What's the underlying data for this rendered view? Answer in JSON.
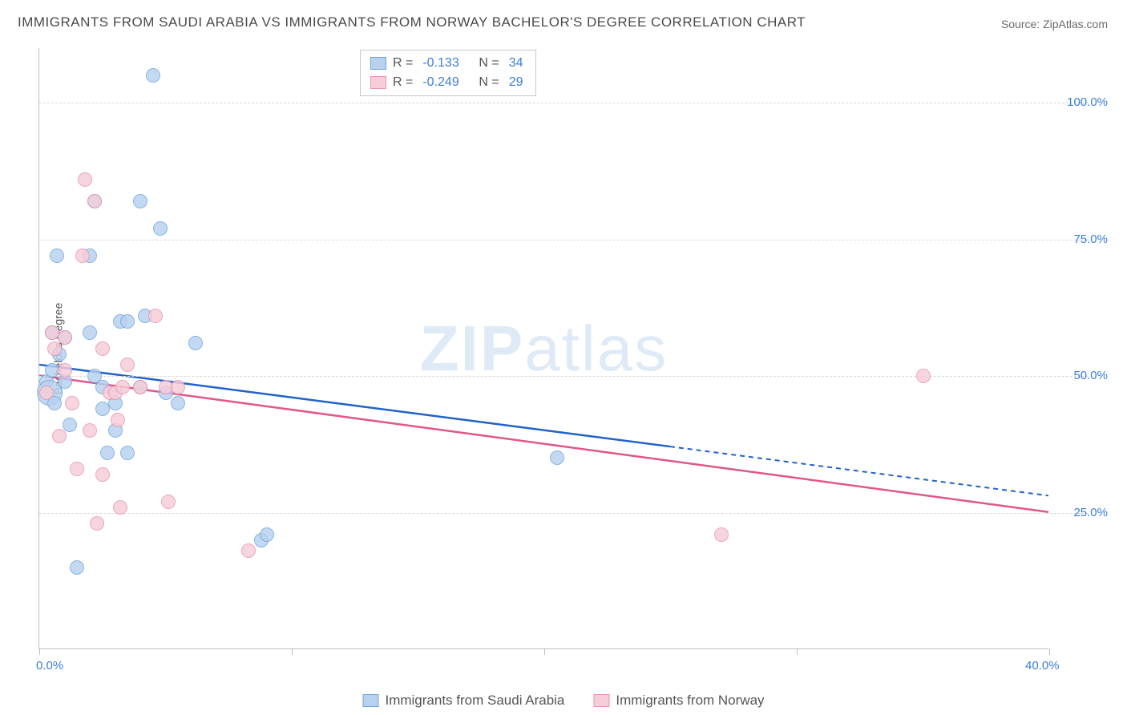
{
  "title": "IMMIGRANTS FROM SAUDI ARABIA VS IMMIGRANTS FROM NORWAY BACHELOR'S DEGREE CORRELATION CHART",
  "source": "Source: ZipAtlas.com",
  "watermark_a": "ZIP",
  "watermark_b": "atlas",
  "y_axis_title": "Bachelor's Degree",
  "chart": {
    "type": "scatter",
    "x_range": [
      0,
      40
    ],
    "y_range": [
      0,
      110
    ],
    "background_color": "#ffffff",
    "grid_color": "#d8d8d8",
    "axis_tick_color": "#bdbdbd",
    "y_ticks": [
      {
        "value": 25,
        "label": "25.0%"
      },
      {
        "value": 50,
        "label": "50.0%"
      },
      {
        "value": 75,
        "label": "75.0%"
      },
      {
        "value": 100,
        "label": "100.0%"
      }
    ],
    "x_ticks": [
      {
        "value": 0,
        "label": "0.0%"
      },
      {
        "value": 10,
        "label": ""
      },
      {
        "value": 20,
        "label": ""
      },
      {
        "value": 30,
        "label": ""
      },
      {
        "value": 40,
        "label": "40.0%"
      }
    ],
    "series": [
      {
        "name": "Immigrants from Saudi Arabia",
        "color_fill": "#b7d1ef",
        "color_stroke": "#6fa5de",
        "r_label": "R =",
        "r": "-0.133",
        "n_label": "N =",
        "n": "34",
        "trend": {
          "x1": 0,
          "y1": 52,
          "x2": 40,
          "y2": 28,
          "color": "#2062c9",
          "solid_until_x": 25
        },
        "points": [
          {
            "x": 0.3,
            "y": 49,
            "r": 9
          },
          {
            "x": 0.4,
            "y": 47,
            "r": 16
          },
          {
            "x": 0.5,
            "y": 58,
            "r": 9
          },
          {
            "x": 0.5,
            "y": 51,
            "r": 9
          },
          {
            "x": 0.6,
            "y": 45,
            "r": 9
          },
          {
            "x": 0.7,
            "y": 72,
            "r": 9
          },
          {
            "x": 0.8,
            "y": 54,
            "r": 9
          },
          {
            "x": 1.0,
            "y": 57,
            "r": 9
          },
          {
            "x": 1.0,
            "y": 49,
            "r": 9
          },
          {
            "x": 1.2,
            "y": 41,
            "r": 9
          },
          {
            "x": 1.5,
            "y": 15,
            "r": 9
          },
          {
            "x": 2.0,
            "y": 58,
            "r": 9
          },
          {
            "x": 2.0,
            "y": 72,
            "r": 9
          },
          {
            "x": 2.2,
            "y": 50,
            "r": 9
          },
          {
            "x": 2.2,
            "y": 82,
            "r": 9
          },
          {
            "x": 2.5,
            "y": 44,
            "r": 9
          },
          {
            "x": 2.5,
            "y": 48,
            "r": 9
          },
          {
            "x": 2.7,
            "y": 36,
            "r": 9
          },
          {
            "x": 3.0,
            "y": 40,
            "r": 9
          },
          {
            "x": 3.0,
            "y": 45,
            "r": 9
          },
          {
            "x": 3.2,
            "y": 60,
            "r": 9
          },
          {
            "x": 3.5,
            "y": 60,
            "r": 9
          },
          {
            "x": 3.5,
            "y": 36,
            "r": 9
          },
          {
            "x": 4.0,
            "y": 82,
            "r": 9
          },
          {
            "x": 4.0,
            "y": 48,
            "r": 9
          },
          {
            "x": 4.2,
            "y": 61,
            "r": 9
          },
          {
            "x": 4.5,
            "y": 105,
            "r": 9
          },
          {
            "x": 4.8,
            "y": 77,
            "r": 9
          },
          {
            "x": 5.0,
            "y": 47,
            "r": 9
          },
          {
            "x": 5.5,
            "y": 45,
            "r": 9
          },
          {
            "x": 6.2,
            "y": 56,
            "r": 9
          },
          {
            "x": 8.8,
            "y": 20,
            "r": 9
          },
          {
            "x": 9.0,
            "y": 21,
            "r": 9
          },
          {
            "x": 20.5,
            "y": 35,
            "r": 9
          }
        ]
      },
      {
        "name": "Immigrants from Norway",
        "color_fill": "#f6cdd9",
        "color_stroke": "#e893ae",
        "r_label": "R =",
        "r": "-0.249",
        "n_label": "N =",
        "n": "29",
        "trend": {
          "x1": 0,
          "y1": 50,
          "x2": 40,
          "y2": 25,
          "color": "#e15689",
          "solid_until_x": 40
        },
        "points": [
          {
            "x": 0.3,
            "y": 47,
            "r": 9
          },
          {
            "x": 0.5,
            "y": 58,
            "r": 9
          },
          {
            "x": 0.6,
            "y": 55,
            "r": 9
          },
          {
            "x": 0.8,
            "y": 39,
            "r": 9
          },
          {
            "x": 1.0,
            "y": 57,
            "r": 9
          },
          {
            "x": 1.0,
            "y": 51,
            "r": 9
          },
          {
            "x": 1.3,
            "y": 45,
            "r": 9
          },
          {
            "x": 1.5,
            "y": 33,
            "r": 9
          },
          {
            "x": 1.7,
            "y": 72,
            "r": 9
          },
          {
            "x": 1.8,
            "y": 86,
            "r": 9
          },
          {
            "x": 2.0,
            "y": 40,
            "r": 9
          },
          {
            "x": 2.2,
            "y": 82,
            "r": 9
          },
          {
            "x": 2.3,
            "y": 23,
            "r": 9
          },
          {
            "x": 2.5,
            "y": 55,
            "r": 9
          },
          {
            "x": 2.5,
            "y": 32,
            "r": 9
          },
          {
            "x": 2.8,
            "y": 47,
            "r": 9
          },
          {
            "x": 3.0,
            "y": 47,
            "r": 9
          },
          {
            "x": 3.1,
            "y": 42,
            "r": 9
          },
          {
            "x": 3.2,
            "y": 26,
            "r": 9
          },
          {
            "x": 3.3,
            "y": 48,
            "r": 9
          },
          {
            "x": 3.5,
            "y": 52,
            "r": 9
          },
          {
            "x": 4.0,
            "y": 48,
            "r": 9
          },
          {
            "x": 4.6,
            "y": 61,
            "r": 9
          },
          {
            "x": 5.0,
            "y": 48,
            "r": 9
          },
          {
            "x": 5.1,
            "y": 27,
            "r": 9
          },
          {
            "x": 5.5,
            "y": 48,
            "r": 9
          },
          {
            "x": 8.3,
            "y": 18,
            "r": 9
          },
          {
            "x": 27.0,
            "y": 21,
            "r": 9
          },
          {
            "x": 35.0,
            "y": 50,
            "r": 9
          }
        ]
      }
    ]
  }
}
